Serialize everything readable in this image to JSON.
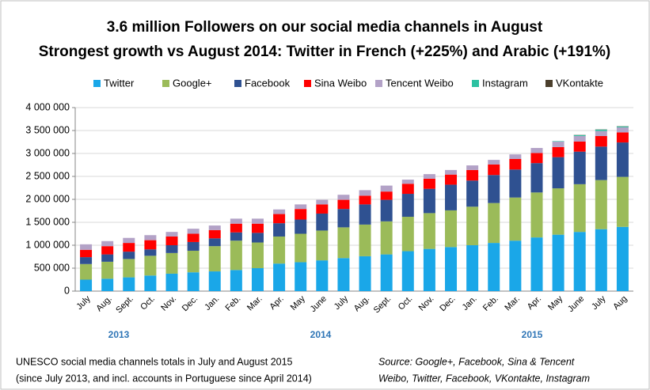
{
  "chart_data": {
    "type": "stacked_bar",
    "title": "3.6 million Followers on our social media channels in August",
    "subtitle": "Strongest growth vs August 2014: Twitter in French (+225%) and Arabic (+191%)",
    "categories": [
      "July",
      "Aug.",
      "Sept.",
      "Oct.",
      "Nov.",
      "Dec.",
      "Jan.",
      "Feb.",
      "Mar.",
      "Apr.",
      "May",
      "June",
      "July",
      "Aug.",
      "Sept.",
      "Oct.",
      "Nov.",
      "Dec.",
      "Jan.",
      "Feb.",
      "Mar.",
      "Apr.",
      "May",
      "June",
      "July",
      "Aug"
    ],
    "year_labels": [
      "2013",
      "2014",
      "2015"
    ],
    "series": [
      {
        "name": "Twitter",
        "color": "#1aa7e8",
        "values": [
          250000,
          270000,
          300000,
          340000,
          380000,
          410000,
          430000,
          460000,
          500000,
          600000,
          630000,
          670000,
          720000,
          760000,
          800000,
          870000,
          920000,
          960000,
          1000000,
          1050000,
          1100000,
          1170000,
          1230000,
          1290000,
          1350000,
          1400000
        ]
      },
      {
        "name": "Google+",
        "color": "#9bbb59",
        "values": [
          340000,
          370000,
          400000,
          430000,
          450000,
          470000,
          550000,
          640000,
          560000,
          590000,
          620000,
          650000,
          670000,
          690000,
          720000,
          750000,
          780000,
          800000,
          840000,
          870000,
          940000,
          980000,
          1010000,
          1040000,
          1070000,
          1090000
        ]
      },
      {
        "name": "Facebook",
        "color": "#2f5191",
        "values": [
          150000,
          160000,
          160000,
          140000,
          170000,
          190000,
          170000,
          180000,
          210000,
          290000,
          310000,
          370000,
          400000,
          440000,
          470000,
          500000,
          530000,
          560000,
          570000,
          610000,
          610000,
          640000,
          680000,
          710000,
          730000,
          750000
        ]
      },
      {
        "name": "Sina Weibo",
        "color": "#ff0000",
        "values": [
          160000,
          180000,
          190000,
          200000,
          190000,
          180000,
          180000,
          190000,
          200000,
          200000,
          230000,
          200000,
          200000,
          190000,
          180000,
          220000,
          220000,
          220000,
          230000,
          230000,
          230000,
          220000,
          220000,
          220000,
          230000,
          220000
        ]
      },
      {
        "name": "Tencent Weibo",
        "color": "#b3a2c7",
        "values": [
          120000,
          110000,
          110000,
          110000,
          100000,
          110000,
          100000,
          110000,
          110000,
          100000,
          100000,
          100000,
          110000,
          120000,
          130000,
          90000,
          100000,
          100000,
          100000,
          100000,
          100000,
          110000,
          120000,
          120000,
          110000,
          110000
        ]
      },
      {
        "name": "Instagram",
        "color": "#2cc1a1",
        "values": [
          0,
          0,
          0,
          0,
          0,
          0,
          0,
          0,
          0,
          0,
          0,
          0,
          0,
          0,
          0,
          0,
          0,
          0,
          0,
          0,
          0,
          0,
          10000,
          20000,
          30000,
          20000
        ]
      },
      {
        "name": "VKontakte",
        "color": "#4b3f2c",
        "values": [
          0,
          0,
          0,
          0,
          0,
          0,
          0,
          0,
          0,
          0,
          0,
          0,
          0,
          0,
          0,
          0,
          0,
          0,
          0,
          0,
          0,
          0,
          0,
          5000,
          5000,
          5000
        ]
      }
    ],
    "ylim": [
      0,
      4000000
    ],
    "yticks": [
      0,
      {
        "value": 500000,
        "label": "500 000"
      },
      {
        "value": 1000000,
        "label": "1 000 000"
      },
      {
        "value": 1500000,
        "label": "1 500 000"
      },
      {
        "value": 2000000,
        "label": "2 000 000"
      },
      {
        "value": 2500000,
        "label": "2 500 000"
      },
      {
        "value": 3000000,
        "label": "3 000 000"
      },
      {
        "value": 3500000,
        "label": "3 500 000"
      },
      {
        "value": 4000000,
        "label": "4 000 000"
      }
    ],
    "grid": true,
    "legend": "top",
    "footnote": [
      "UNESCO social media channels totals in July and August 2015",
      "(since July 2013, and  incl. accounts in Portuguese since April 2014)"
    ],
    "source": [
      "Source: Google+, Facebook, Sina & Tencent",
      "Weibo,  Twitter, Facebook, VKontakte, Instagram"
    ]
  }
}
